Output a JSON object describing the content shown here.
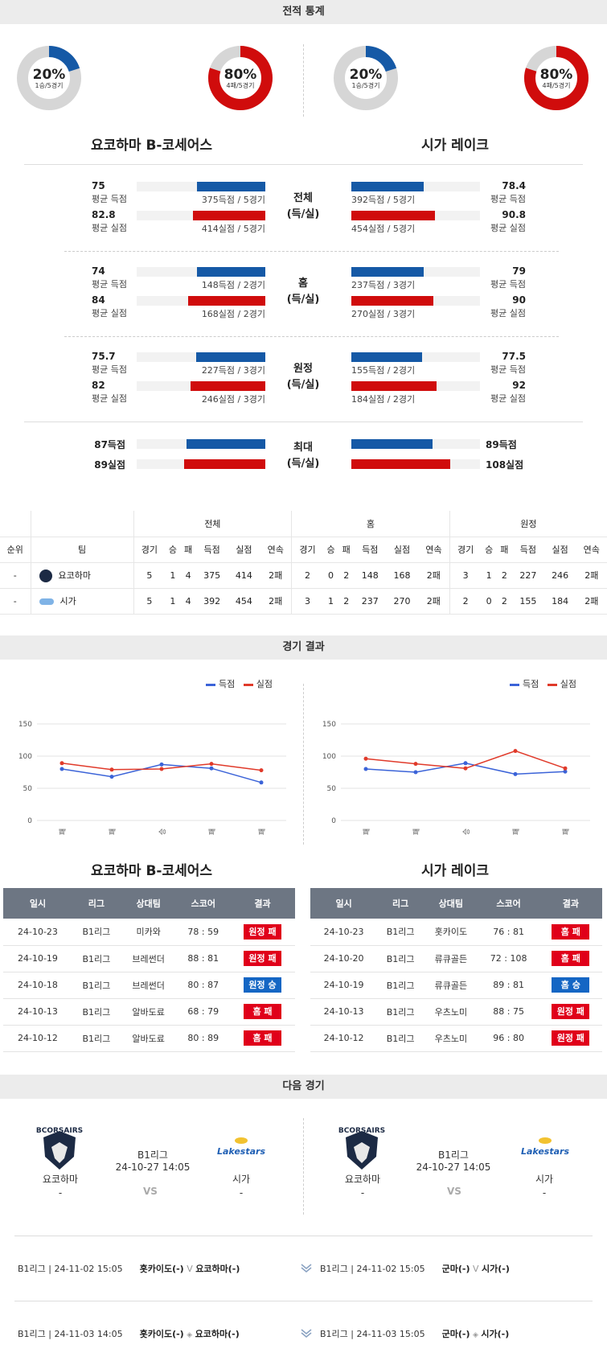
{
  "sections": {
    "stats_title": "전적 통계",
    "results_title": "경기 결과",
    "next_title": "다음 경기"
  },
  "teams": {
    "home_full": "요코하마 B-코세어스",
    "away_full": "시가 레이크",
    "home_short": "요코하마",
    "away_short": "시가"
  },
  "donuts": {
    "home_win": {
      "pct": "20%",
      "sub": "1승/5경기",
      "value": 0.2,
      "color": "#1559a6"
    },
    "home_loss": {
      "pct": "80%",
      "sub": "4패/5경기",
      "value": 0.8,
      "color": "#d00c0c"
    },
    "away_win": {
      "pct": "20%",
      "sub": "1승/5경기",
      "value": 0.2,
      "color": "#1559a6"
    },
    "away_loss": {
      "pct": "80%",
      "sub": "4패/5경기",
      "value": 0.8,
      "color": "#d00c0c"
    }
  },
  "compare": [
    {
      "label1": "전체",
      "label2": "(득/실)",
      "home": {
        "scored": "75",
        "scored_lbl": "평균 득점",
        "scored_txt": "375득점 / 5경기",
        "conceded": "82.8",
        "conceded_lbl": "평균 실점",
        "conceded_txt": "414실점 / 5경기",
        "scored_ratio": 0.53,
        "conceded_ratio": 0.56
      },
      "away": {
        "scored": "78.4",
        "scored_lbl": "평균 득점",
        "scored_txt": "392득점 / 5경기",
        "conceded": "90.8",
        "conceded_lbl": "평균 실점",
        "conceded_txt": "454실점 / 5경기",
        "scored_ratio": 0.56,
        "conceded_ratio": 0.65
      }
    },
    {
      "label1": "홈",
      "label2": "(득/실)",
      "home": {
        "scored": "74",
        "scored_lbl": "평균 득점",
        "scored_txt": "148득점 / 2경기",
        "conceded": "84",
        "conceded_lbl": "평균 실점",
        "conceded_txt": "168실점 / 2경기",
        "scored_ratio": 0.53,
        "conceded_ratio": 0.6
      },
      "away": {
        "scored": "79",
        "scored_lbl": "평균 득점",
        "scored_txt": "237득점 / 3경기",
        "conceded": "90",
        "conceded_lbl": "평균 실점",
        "conceded_txt": "270실점 / 3경기",
        "scored_ratio": 0.56,
        "conceded_ratio": 0.64
      }
    },
    {
      "label1": "원정",
      "label2": "(득/실)",
      "home": {
        "scored": "75.7",
        "scored_lbl": "평균 득점",
        "scored_txt": "227득점 / 3경기",
        "conceded": "82",
        "conceded_lbl": "평균 실점",
        "conceded_txt": "246실점 / 3경기",
        "scored_ratio": 0.54,
        "conceded_ratio": 0.58
      },
      "away": {
        "scored": "77.5",
        "scored_lbl": "평균 득점",
        "scored_txt": "155득점 / 2경기",
        "conceded": "92",
        "conceded_lbl": "평균 실점",
        "conceded_txt": "184실점 / 2경기",
        "scored_ratio": 0.55,
        "conceded_ratio": 0.66
      }
    }
  ],
  "max_row": {
    "label1": "최대",
    "label2": "(득/실)",
    "home": {
      "scored": "87득점",
      "conceded": "89실점",
      "scored_ratio": 0.61,
      "conceded_ratio": 0.63
    },
    "away": {
      "scored": "89득점",
      "conceded": "108실점",
      "scored_ratio": 0.63,
      "conceded_ratio": 0.77
    }
  },
  "standings": {
    "groups": [
      "전체",
      "홈",
      "원정"
    ],
    "cols": [
      "경기",
      "승",
      "패",
      "득점",
      "실점",
      "연속"
    ],
    "rank_hdr": "순위",
    "team_hdr": "팀",
    "rows": [
      {
        "rank": "-",
        "team": "요코하마",
        "all": [
          "5",
          "1",
          "4",
          "375",
          "414",
          "2패"
        ],
        "home": [
          "2",
          "0",
          "2",
          "148",
          "168",
          "2패"
        ],
        "away": [
          "3",
          "1",
          "2",
          "227",
          "246",
          "2패"
        ]
      },
      {
        "rank": "-",
        "team": "시가",
        "all": [
          "5",
          "1",
          "4",
          "392",
          "454",
          "2패"
        ],
        "home": [
          "3",
          "1",
          "2",
          "237",
          "270",
          "2패"
        ],
        "away": [
          "2",
          "0",
          "2",
          "155",
          "184",
          "2패"
        ]
      }
    ]
  },
  "chart_data": [
    {
      "type": "line",
      "categories": [
        "패",
        "패",
        "승",
        "패",
        "패"
      ],
      "series": [
        {
          "name": "득점",
          "color": "#3b63d8",
          "values": [
            80,
            68,
            87,
            81,
            59
          ]
        },
        {
          "name": "실점",
          "color": "#e03a2a",
          "values": [
            89,
            79,
            80,
            88,
            78
          ]
        }
      ],
      "yticks": [
        0,
        50,
        100,
        150
      ],
      "ylim": [
        0,
        150
      ],
      "legend": "top-right"
    },
    {
      "type": "line",
      "categories": [
        "패",
        "패",
        "승",
        "패",
        "패"
      ],
      "series": [
        {
          "name": "득점",
          "color": "#3b63d8",
          "values": [
            80,
            75,
            89,
            72,
            76
          ]
        },
        {
          "name": "실점",
          "color": "#e03a2a",
          "values": [
            96,
            88,
            81,
            108,
            81
          ]
        }
      ],
      "yticks": [
        0,
        50,
        100,
        150
      ],
      "ylim": [
        0,
        150
      ],
      "legend": "top-right"
    }
  ],
  "results": {
    "headers": [
      "일시",
      "리그",
      "상대팀",
      "스코어",
      "결과"
    ],
    "home": [
      {
        "date": "24-10-23",
        "league": "B1리그",
        "opp": "미카와",
        "score": "78 : 59",
        "result": "원정 패",
        "color": "red"
      },
      {
        "date": "24-10-19",
        "league": "B1리그",
        "opp": "브레썬더",
        "score": "88 : 81",
        "result": "원정 패",
        "color": "red"
      },
      {
        "date": "24-10-18",
        "league": "B1리그",
        "opp": "브레썬더",
        "score": "80 : 87",
        "result": "원정 승",
        "color": "blue"
      },
      {
        "date": "24-10-13",
        "league": "B1리그",
        "opp": "알바도료",
        "score": "68 : 79",
        "result": "홈 패",
        "color": "red"
      },
      {
        "date": "24-10-12",
        "league": "B1리그",
        "opp": "알바도료",
        "score": "80 : 89",
        "result": "홈 패",
        "color": "red"
      }
    ],
    "away": [
      {
        "date": "24-10-23",
        "league": "B1리그",
        "opp": "홋카이도",
        "score": "76 : 81",
        "result": "홈 패",
        "color": "red"
      },
      {
        "date": "24-10-20",
        "league": "B1리그",
        "opp": "류큐골든",
        "score": "72 : 108",
        "result": "홈 패",
        "color": "red"
      },
      {
        "date": "24-10-19",
        "league": "B1리그",
        "opp": "류큐골든",
        "score": "89 : 81",
        "result": "홈 승",
        "color": "blue"
      },
      {
        "date": "24-10-13",
        "league": "B1리그",
        "opp": "우츠노미",
        "score": "88 : 75",
        "result": "원정 패",
        "color": "red"
      },
      {
        "date": "24-10-12",
        "league": "B1리그",
        "opp": "우츠노미",
        "score": "96 : 80",
        "result": "원정 패",
        "color": "red"
      }
    ]
  },
  "next_match": {
    "league": "B1리그",
    "datetime": "24-10-27 14:05",
    "vs": "VS",
    "home_logo": "BCORSAIRS",
    "away_logo": "Lakestars",
    "home_team": "요코하마",
    "away_team": "시가",
    "home_rank": "-",
    "away_rank": "-"
  },
  "fixtures": [
    {
      "left": {
        "info": "B1리그 | 24-11-02 15:05",
        "team1": "홋카이도(-)",
        "vs": "V",
        "team2": "요코하마(-)"
      },
      "right": {
        "info": "B1리그 | 24-11-02 15:05",
        "team1": "군마(-)",
        "vs": "V",
        "team2": "시가(-)"
      }
    },
    {
      "left": {
        "info": "B1리그 | 24-11-03 14:05",
        "team1": "홋카이도(-)",
        "vs": "",
        "team2": "요코하마(-)"
      },
      "right": {
        "info": "B1리그 | 24-11-03 15:05",
        "team1": "군마(-)",
        "vs": "",
        "team2": "시가(-)"
      }
    }
  ]
}
